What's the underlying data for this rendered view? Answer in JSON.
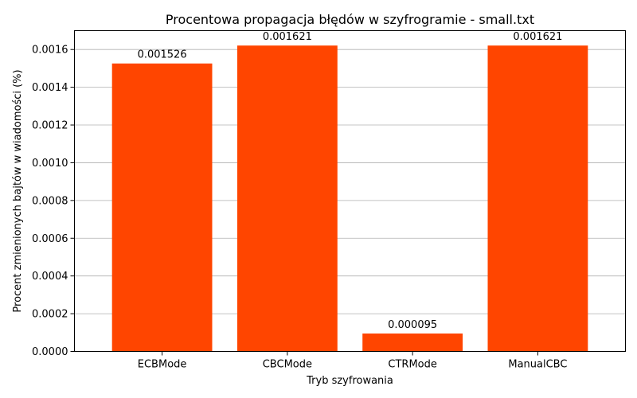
{
  "chart_data": {
    "type": "bar",
    "title": "Procentowa propagacja błędów w szyfrogramie - small.txt",
    "xlabel": "Tryb szyfrowania",
    "ylabel": "Procent zmienionych bajtów w wiadomości (%)",
    "categories": [
      "ECBMode",
      "CBCMode",
      "CTRMode",
      "ManualCBC"
    ],
    "values": [
      0.001526,
      0.001621,
      9.5e-05,
      0.001621
    ],
    "data_labels": [
      "0.001526",
      "0.001621",
      "0.000095",
      "0.001621"
    ],
    "ylim": [
      0,
      0.0017
    ],
    "yticks": [
      0.0,
      0.0002,
      0.0004,
      0.0006,
      0.0008,
      0.001,
      0.0012,
      0.0014,
      0.0016
    ],
    "ytick_labels": [
      "0.0000",
      "0.0002",
      "0.0004",
      "0.0006",
      "0.0008",
      "0.0010",
      "0.0012",
      "0.0014",
      "0.0016"
    ],
    "grid": "y",
    "bar_color": "#ff4500"
  }
}
